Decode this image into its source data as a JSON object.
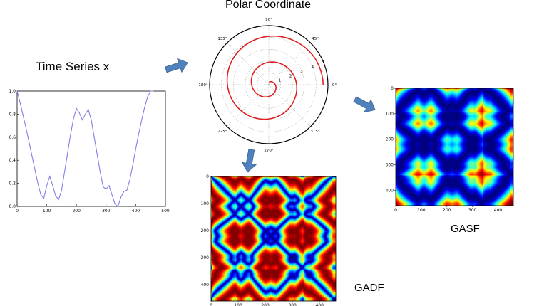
{
  "labels": {
    "time_series": "Time Series x",
    "polar": "Polar Coordinate",
    "gasf": "GASF",
    "gadf": "GADF"
  },
  "colors": {
    "series_line": "#8080e8",
    "polar_line": "#e02020",
    "arrow_fill": "#4f81bd",
    "arrow_stroke": "#3a6494"
  },
  "icons": [
    "arrow-right-icon",
    "arrow-down-icon"
  ],
  "chart_data": [
    {
      "type": "line",
      "x": [
        0,
        10,
        20,
        30,
        40,
        50,
        60,
        70,
        80,
        90,
        100,
        110,
        120,
        130,
        140,
        150,
        160,
        170,
        180,
        190,
        200,
        210,
        220,
        230,
        240,
        250,
        260,
        270,
        280,
        290,
        300,
        310,
        320,
        330,
        340,
        350,
        360,
        370,
        380,
        390,
        400,
        410,
        420,
        430,
        440,
        450,
        460
      ],
      "series": [
        {
          "values": [
            1.0,
            0.9,
            0.79,
            0.68,
            0.56,
            0.44,
            0.32,
            0.2,
            0.1,
            0.07,
            0.18,
            0.26,
            0.18,
            0.09,
            0.06,
            0.14,
            0.3,
            0.46,
            0.62,
            0.76,
            0.85,
            0.81,
            0.75,
            0.8,
            0.84,
            0.75,
            0.6,
            0.45,
            0.3,
            0.17,
            0.15,
            0.18,
            0.1,
            0.02,
            0.0,
            0.08,
            0.13,
            0.14,
            0.23,
            0.36,
            0.5,
            0.63,
            0.75,
            0.86,
            0.95,
            1.0,
            1.0
          ]
        }
      ],
      "xlim": [
        0,
        500
      ],
      "ylim": [
        0.0,
        1.0
      ],
      "xticks": [
        "0",
        "100",
        "200",
        "300",
        "400",
        "500"
      ],
      "yticks": [
        "0.0",
        "0.2",
        "0.4",
        "0.6",
        "0.8",
        "1.0"
      ]
    },
    {
      "type": "line",
      "coordinate": "polar",
      "theta_deg": [
        0,
        30,
        60,
        90,
        120,
        150,
        180,
        210,
        240,
        270,
        300,
        330,
        360,
        390,
        420,
        450,
        480,
        510,
        540,
        570,
        600,
        630,
        660,
        690,
        720,
        750,
        780,
        810
      ],
      "r": [
        4.6,
        4.5,
        4.3,
        4.1,
        3.9,
        3.7,
        3.5,
        3.3,
        3.1,
        2.9,
        2.7,
        2.5,
        2.35,
        2.2,
        2.05,
        1.9,
        1.75,
        1.6,
        1.45,
        1.3,
        1.15,
        1.0,
        0.85,
        0.7,
        0.55,
        0.4,
        0.3,
        0.2
      ],
      "angle_ticks": [
        "0°",
        "45°",
        "90°",
        "135°",
        "180°",
        "225°",
        "270°",
        "315°"
      ],
      "radial_ticks": [
        "1",
        "2",
        "3",
        "4",
        "5"
      ]
    },
    {
      "type": "heatmap",
      "name": "GASF",
      "xticks": [
        "0",
        "100",
        "200",
        "300",
        "400"
      ],
      "yticks": [
        "0",
        "100",
        "200",
        "300",
        "400"
      ],
      "extent": [
        0,
        460
      ],
      "colormap": "jet"
    },
    {
      "type": "heatmap",
      "name": "GADF",
      "xticks": [
        "0",
        "100",
        "200",
        "300",
        "400"
      ],
      "yticks": [
        "0",
        "100",
        "200",
        "300",
        "400"
      ],
      "extent": [
        0,
        460
      ],
      "colormap": "jet"
    }
  ]
}
